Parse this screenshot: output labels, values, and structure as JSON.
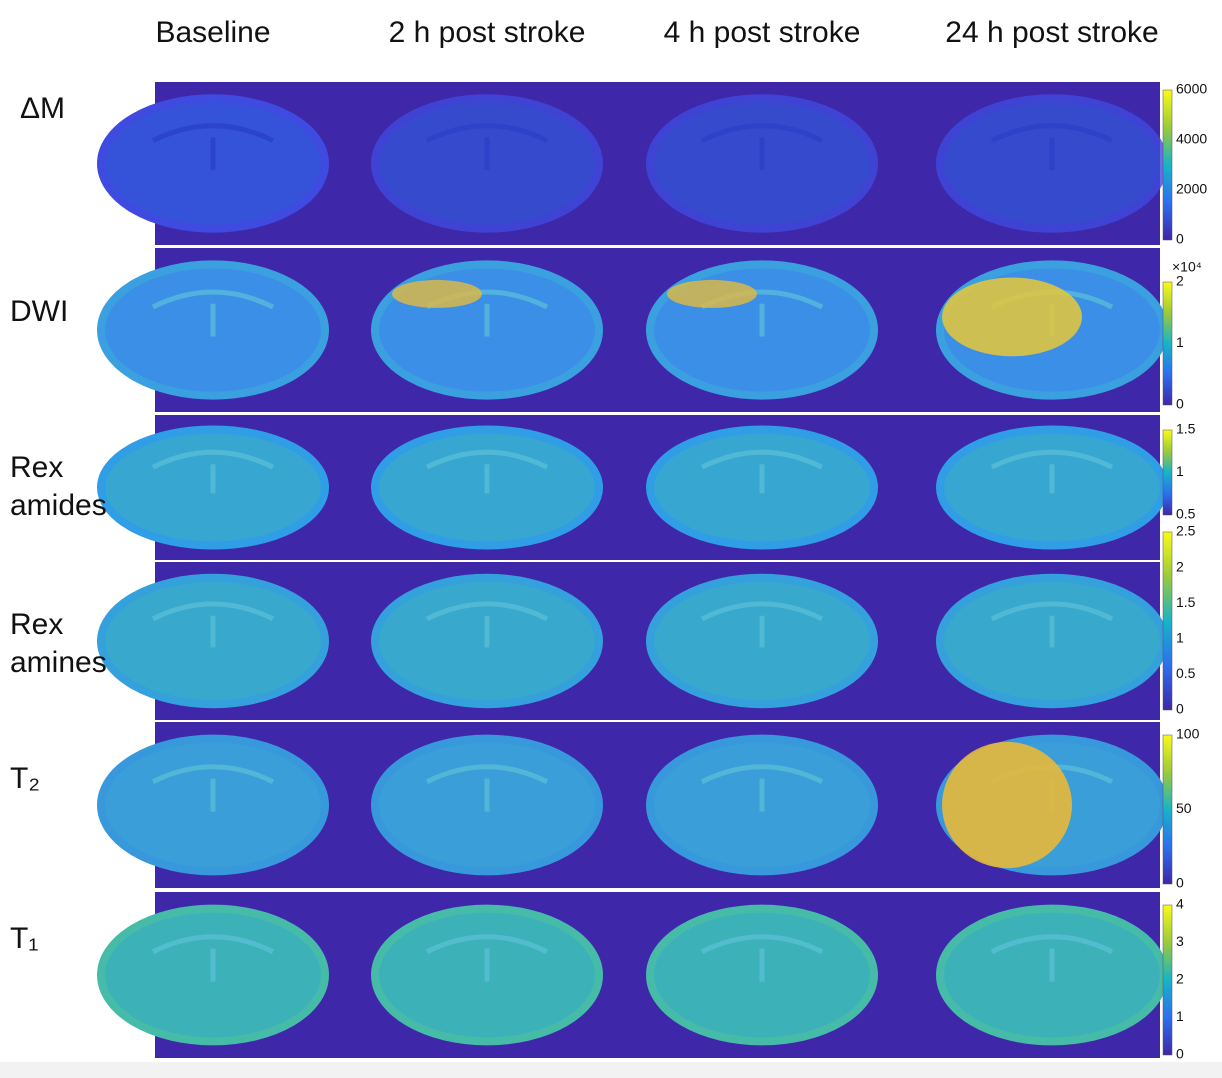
{
  "columns": [
    "Baseline",
    "2 h post stroke",
    "4 h post stroke",
    "24 h post stroke"
  ],
  "rows": [
    {
      "label": [
        "ΔM"
      ],
      "colorbar": {
        "ticks": [
          "6000",
          "4000",
          "2000",
          "0"
        ]
      }
    },
    {
      "label": [
        "DWI"
      ],
      "colorbar": {
        "multiplier": "×10⁴",
        "ticks": [
          "2",
          "1",
          "0"
        ]
      }
    },
    {
      "label": [
        "Rex",
        "amides"
      ],
      "colorbar": {
        "ticks": [
          "1.5",
          "1",
          "0.5"
        ]
      }
    },
    {
      "label": [
        "Rex",
        "amines"
      ],
      "colorbar": {
        "ticks": [
          "2.5",
          "2",
          "1.5",
          "1",
          "0.5",
          "0"
        ]
      }
    },
    {
      "label": [
        "T₂"
      ],
      "colorbar": {
        "ticks": [
          "100",
          "50",
          "0"
        ]
      }
    },
    {
      "label": [
        "T₁"
      ],
      "colorbar": {
        "ticks": [
          "4",
          "3",
          "2",
          "1",
          "0"
        ]
      }
    }
  ]
}
